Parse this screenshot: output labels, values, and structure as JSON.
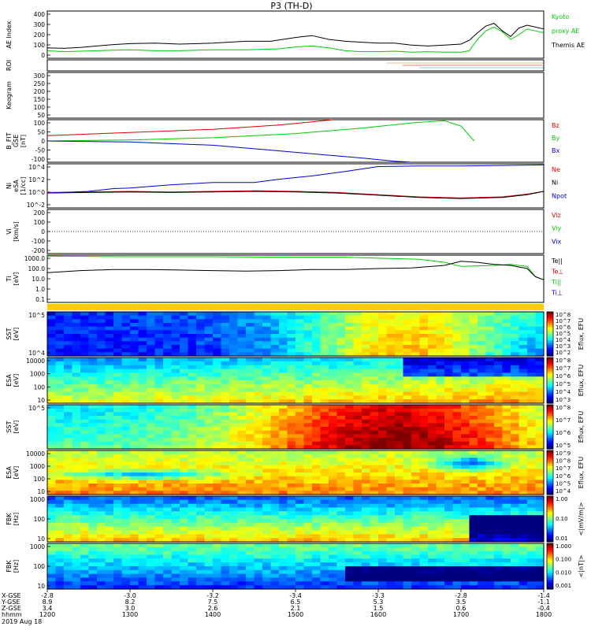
{
  "title": "P3 (TH-D)",
  "date": "2019 Aug 18",
  "colors": {
    "red": "#e00000",
    "green": "#00cc00",
    "blue": "#0000cc",
    "black": "#000000"
  },
  "chart_data": [
    {
      "type": "line",
      "panel": "ae",
      "ylabel": "AE Index",
      "yticks": [
        "400",
        "300",
        "200",
        "100",
        "0"
      ],
      "ylim": [
        -50,
        450
      ],
      "legend": [
        "Kyoto proxy AE",
        "Themis AE"
      ],
      "series": [
        {
          "name": "Kyoto proxy AE",
          "color": "#00cc00",
          "x": [
            1200,
            1220,
            1240,
            1260,
            1280,
            1300,
            1330,
            1360,
            1400,
            1440,
            1480,
            1500,
            1520,
            1540,
            1560,
            1580,
            1600,
            1620,
            1640,
            1660,
            1680,
            1700,
            1710,
            1720,
            1730,
            1740,
            1750,
            1760,
            1770,
            1780,
            1790,
            1800
          ],
          "values": [
            30,
            20,
            25,
            30,
            35,
            40,
            30,
            30,
            40,
            40,
            50,
            70,
            80,
            60,
            30,
            20,
            20,
            25,
            15,
            20,
            15,
            15,
            30,
            150,
            240,
            280,
            230,
            150,
            200,
            260,
            240,
            220
          ]
        },
        {
          "name": "Themis AE",
          "color": "#000000",
          "x": [
            1200,
            1220,
            1240,
            1260,
            1280,
            1300,
            1330,
            1360,
            1400,
            1440,
            1470,
            1500,
            1520,
            1540,
            1560,
            1580,
            1600,
            1620,
            1640,
            1660,
            1680,
            1700,
            1710,
            1720,
            1730,
            1740,
            1750,
            1760,
            1770,
            1780,
            1790,
            1800
          ],
          "values": [
            60,
            55,
            65,
            80,
            95,
            105,
            110,
            100,
            110,
            130,
            130,
            170,
            190,
            150,
            130,
            120,
            110,
            110,
            90,
            80,
            90,
            100,
            140,
            220,
            290,
            320,
            240,
            180,
            270,
            300,
            280,
            260
          ]
        }
      ]
    },
    {
      "type": "line",
      "panel": "bfit",
      "ylabel": "B_FIT GSE [nT]",
      "yticks": [
        "100",
        "50",
        "0",
        "-50",
        "-100"
      ],
      "ylim": [
        -100,
        100
      ],
      "legend": [
        "Bz",
        "By",
        "Bx"
      ],
      "series": [
        {
          "name": "Bz",
          "color": "#e00000",
          "x": [
            1200,
            1300,
            1400,
            1480,
            1520,
            1545
          ],
          "values": [
            25,
            40,
            55,
            75,
            90,
            100
          ]
        },
        {
          "name": "By",
          "color": "#00cc00",
          "x": [
            1200,
            1300,
            1400,
            1500,
            1580,
            1640,
            1680,
            1700,
            1716
          ],
          "values": [
            0,
            5,
            15,
            35,
            60,
            85,
            95,
            70,
            0
          ]
        },
        {
          "name": "Bx",
          "color": "#0000cc",
          "x": [
            1200,
            1300,
            1400,
            1460,
            1520,
            1580,
            1620,
            1640
          ],
          "values": [
            0,
            -5,
            -20,
            -40,
            -60,
            -80,
            -95,
            -100
          ]
        }
      ]
    },
    {
      "type": "line",
      "panel": "ni",
      "ylabel": "Ni [1/cc]",
      "yticks": [
        "10^4",
        "10^2",
        "10^0",
        "10^-2"
      ],
      "ylim": [
        -3,
        5
      ],
      "legend": [
        "Ne",
        "Ni",
        "Npot"
      ],
      "series": [
        {
          "name": "Ne",
          "color": "#e00000",
          "x": [
            1200,
            1250,
            1300,
            1350,
            1400,
            1450,
            1500,
            1550,
            1600,
            1650,
            1700,
            1750,
            1780,
            1800
          ],
          "values": [
            -0.2,
            -0.1,
            0,
            -0.1,
            0,
            0.1,
            0,
            -0.2,
            -0.6,
            -1,
            -1.2,
            -1.0,
            -0.5,
            0
          ]
        },
        {
          "name": "Ni",
          "color": "#000000",
          "x": [
            1200,
            1250,
            1300,
            1350,
            1400,
            1450,
            1500,
            1550,
            1600,
            1650,
            1700,
            1750,
            1780,
            1800
          ],
          "values": [
            -0.3,
            -0.2,
            -0.1,
            -0.2,
            -0.1,
            0,
            -0.1,
            -0.3,
            -0.7,
            -1.1,
            -1.3,
            -1.1,
            -0.6,
            0
          ]
        },
        {
          "name": "Npot",
          "color": "#0000cc",
          "x": [
            1200,
            1250,
            1280,
            1300,
            1350,
            1400,
            1450,
            1480,
            1520,
            1560,
            1600,
            1650,
            1700,
            1750,
            1800
          ],
          "values": [
            -0.3,
            0,
            0.5,
            0.6,
            1.2,
            1.6,
            1.6,
            2.2,
            2.8,
            3.6,
            4.5,
            4.6,
            4.6,
            4.7,
            4.8
          ]
        }
      ]
    },
    {
      "type": "line",
      "panel": "vi",
      "ylabel": "Vi [km/s]",
      "yticks": [
        "200",
        "100",
        "0",
        "-100",
        "-200"
      ],
      "ylim": [
        -250,
        250
      ],
      "legend": [
        "Viz",
        "Viy",
        "Vix"
      ],
      "series": []
    },
    {
      "type": "line",
      "panel": "ti",
      "ylabel": "Ti [eV]",
      "yticks": [
        "1000.0",
        "100.0",
        "10.0",
        "1.0",
        "0.1"
      ],
      "ylim": [
        -1.3,
        3.3
      ],
      "legend": [
        "Te||",
        "Te⊥",
        "Ti||",
        "Ti⊥"
      ],
      "series": [
        {
          "name": "Ti||",
          "color": "#00cc00",
          "x": [
            1200,
            1300,
            1400,
            1500,
            1560,
            1600,
            1650,
            1680,
            1700,
            1740,
            1760,
            1780,
            1790,
            1800
          ],
          "values": [
            3.2,
            3.15,
            3.15,
            3.1,
            3.1,
            3.0,
            2.9,
            2.6,
            2.2,
            2.3,
            2.4,
            2.2,
            1.2,
            0.9
          ]
        },
        {
          "name": "Te||",
          "color": "#000000",
          "x": [
            1200,
            1240,
            1280,
            1320,
            1360,
            1400,
            1440,
            1480,
            1520,
            1560,
            1600,
            1640,
            1680,
            1700,
            1720,
            1740,
            1760,
            1780,
            1790,
            1800
          ],
          "values": [
            1.6,
            1.8,
            1.9,
            1.9,
            1.85,
            1.8,
            1.75,
            1.8,
            1.9,
            1.9,
            2.0,
            2.05,
            2.3,
            2.7,
            2.6,
            2.4,
            2.3,
            2.0,
            1.2,
            0.9
          ]
        }
      ]
    },
    {
      "type": "heatmap",
      "panel": "sst1",
      "ylabel": "SST [eV]",
      "yticks": [
        "10^5",
        "10^4"
      ],
      "colorbar_label": "Eflux, EFU",
      "colorbar_ticks": [
        "10^8",
        "10^7",
        "10^6",
        "10^5",
        "10^4",
        "10^3",
        "10^2"
      ]
    },
    {
      "type": "heatmap",
      "panel": "esa1",
      "ylabel": "ESA [eV]",
      "yticks": [
        "10000",
        "1000",
        "100",
        "10"
      ],
      "colorbar_label": "Eflux, EFU",
      "colorbar_ticks": [
        "10^8",
        "10^7",
        "10^6",
        "10^5",
        "10^4",
        "10^3"
      ]
    },
    {
      "type": "heatmap",
      "panel": "sst2",
      "ylabel": "SST [eV]",
      "yticks": [
        "10^5"
      ],
      "colorbar_label": "Eflux, EFU",
      "colorbar_ticks": [
        "10^8",
        "10^7",
        "10^6",
        "10^5"
      ]
    },
    {
      "type": "heatmap",
      "panel": "esa2",
      "ylabel": "ESA [eV]",
      "yticks": [
        "10000",
        "1000",
        "100",
        "10"
      ],
      "colorbar_label": "Eflux, EFU",
      "colorbar_ticks": [
        "10^9",
        "10^8",
        "10^7",
        "10^6",
        "10^5",
        "10^4"
      ]
    },
    {
      "type": "heatmap",
      "panel": "fbk1",
      "ylabel": "FBK [Hz]",
      "yticks": [
        "1000",
        "100",
        "10"
      ],
      "colorbar_label": "<|mV/m|>",
      "colorbar_ticks": [
        "1.00",
        "0.10",
        "0.01"
      ]
    },
    {
      "type": "heatmap",
      "panel": "fbk2",
      "ylabel": "FBK [Hz]",
      "yticks": [
        "1000",
        "100",
        "10"
      ],
      "colorbar_label": "<|nT|>",
      "colorbar_ticks": [
        "1.000",
        "0.100",
        "0.010",
        "0.001"
      ]
    }
  ],
  "panel_labels": {
    "ae": [
      "AE Index"
    ],
    "roi": [
      "ROI"
    ],
    "keogram": [
      "Keogram"
    ],
    "bfit": [
      "B_FIT",
      "GSE",
      "[nT]"
    ],
    "ni": [
      "Ni",
      "eSA",
      "[1/cc]"
    ],
    "vi": [
      "Vi",
      "[km/s]"
    ],
    "ti": [
      "Ti",
      "[eV]"
    ],
    "sst1": [
      "SST",
      "[eV]"
    ],
    "esa1": [
      "ESA",
      "[eV]"
    ],
    "sst2": [
      "SST",
      "[eV]"
    ],
    "esa2": [
      "ESA",
      "[eV]"
    ],
    "fbk1": [
      "FBK",
      "[Hz]"
    ],
    "fbk2": [
      "FBK",
      "[Hz]"
    ]
  },
  "keogram_ticks": [
    "300",
    "250",
    "200",
    "150",
    "100",
    "50"
  ],
  "right_labels": {
    "ae": [
      "Kyoto",
      "proxy AE",
      "Themis AE"
    ],
    "bfit": [
      "Bz",
      "By",
      "Bx"
    ],
    "ni": [
      "Ne",
      "Ni",
      "Npot"
    ],
    "vi": [
      "Viz",
      "Viy",
      "Vix"
    ],
    "ti": [
      "Te||",
      "Te⊥",
      "Ti||",
      "Ti⊥"
    ]
  },
  "time_axis": {
    "rows": [
      {
        "label": "X-GSE",
        "values": [
          "-2.8",
          "-3.0",
          "-3.2",
          "-3.4",
          "-3.3",
          "-2.8",
          "-1.4"
        ]
      },
      {
        "label": "Y-GSE",
        "values": [
          "8.9",
          "8.2",
          "7.5",
          "6.5",
          "5.3",
          "3.5",
          "-1.1"
        ]
      },
      {
        "label": "Z-GSE",
        "values": [
          "3.4",
          "3.0",
          "2.6",
          "2.1",
          "1.5",
          "0.6",
          "-0.4"
        ]
      },
      {
        "label": "hhmm",
        "values": [
          "1200",
          "1300",
          "1400",
          "1500",
          "1600",
          "1700",
          "1800"
        ]
      }
    ],
    "date_label": "2019 Aug 18"
  }
}
